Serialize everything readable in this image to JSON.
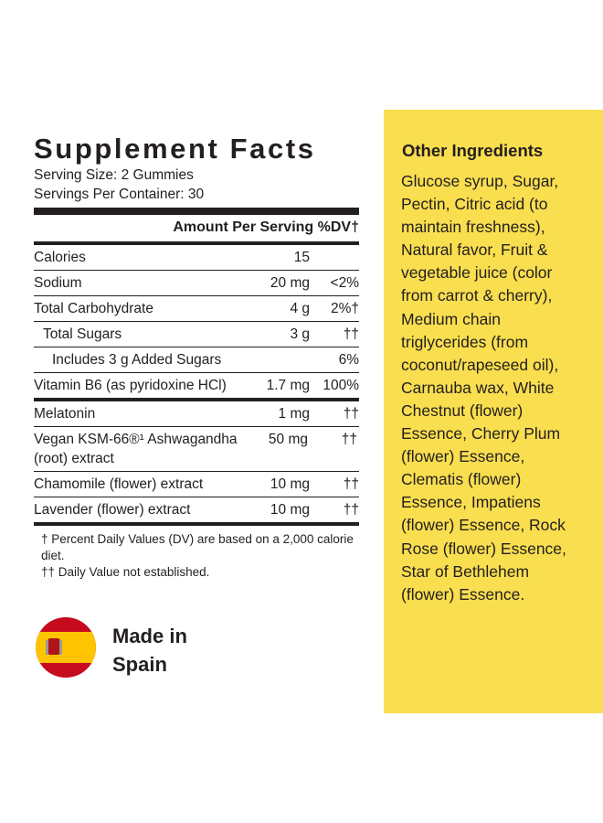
{
  "facts": {
    "title": "Supplement Facts",
    "serving_size": "Serving Size: 2 Gummies",
    "servings_per_container": "Servings Per Container: 30",
    "header": {
      "amount": "Amount Per Serving",
      "dv": "%DV†"
    },
    "nutrients": [
      {
        "name": "Calories",
        "amount": "15",
        "dv": null
      },
      {
        "name": "Sodium",
        "amount": "20 mg",
        "dv": "<2%"
      },
      {
        "name": "Total Carbohydrate",
        "amount": "4 g",
        "dv": "2%†"
      },
      {
        "name": "Total Sugars",
        "amount": "3 g",
        "dv": "††"
      },
      {
        "name": "Includes 3 g Added Sugars",
        "amount": null,
        "dv": "6%"
      },
      {
        "name": "Vitamin B6 (as pyridoxine HCl)",
        "amount": "1.7 mg",
        "dv": "100%"
      }
    ],
    "ingredients": [
      {
        "name": "Melatonin",
        "amount": "1 mg",
        "dv": "††"
      },
      {
        "name": "Vegan KSM-66®¹ Ashwagandha (root) extract",
        "amount": "50 mg",
        "dv": "††"
      },
      {
        "name": "Chamomile (flower) extract",
        "amount": "10 mg",
        "dv": "††"
      },
      {
        "name": "Lavender (flower) extract",
        "amount": "10 mg",
        "dv": "††"
      }
    ],
    "footnotes": [
      "† Percent Daily Values (DV) are based on a 2,000 calorie diet.",
      "†† Daily Value not established."
    ]
  },
  "origin": {
    "line1": "Made in",
    "line2": "Spain"
  },
  "other_ingredients": {
    "title": "Other Ingredients",
    "lines": [
      "Glucose syrup, Sugar,",
      "Pectin, Citric acid (to",
      "maintain freshness),",
      "Natural favor, Fruit &",
      "vegetable juice (color",
      "from carrot & cherry),",
      "Medium chain",
      "triglycerides (from",
      "coconut/rapeseed oil),",
      "Carnauba wax, White",
      "Chestnut (flower)",
      "Essence, Cherry Plum",
      "(flower) Essence,",
      "Clematis (flower)",
      "Essence, Impatiens",
      "(flower) Essence, Rock",
      "Rose (flower) Essence,",
      "Star of Bethlehem",
      "(flower) Essence."
    ]
  }
}
